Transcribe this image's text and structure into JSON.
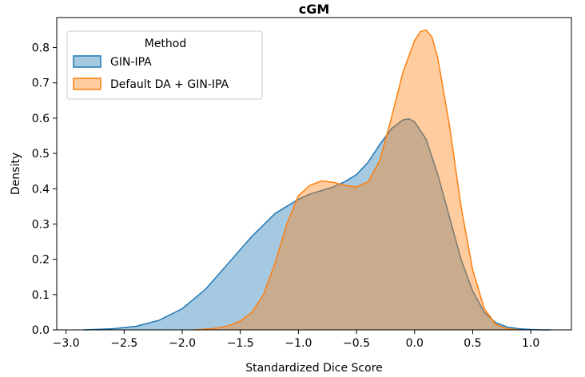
{
  "chart_data": {
    "type": "area",
    "title": "cGM",
    "xlabel": "Standardized Dice Score",
    "ylabel": "Density",
    "xlim": [
      -3.08,
      1.35
    ],
    "ylim": [
      0.0,
      0.885
    ],
    "xticks": [
      -3.0,
      -2.5,
      -2.0,
      -1.5,
      -1.0,
      -0.5,
      0.0,
      0.5,
      1.0
    ],
    "xtick_labels": [
      "−3.0",
      "−2.5",
      "−2.0",
      "−1.5",
      "−1.0",
      "−0.5",
      "0.0",
      "0.5",
      "1.0"
    ],
    "yticks": [
      0.0,
      0.1,
      0.2,
      0.3,
      0.4,
      0.5,
      0.6,
      0.7,
      0.8
    ],
    "ytick_labels": [
      "0.0",
      "0.1",
      "0.2",
      "0.3",
      "0.4",
      "0.5",
      "0.6",
      "0.7",
      "0.8"
    ],
    "grid": false,
    "legend": {
      "title": "Method",
      "placement": "top-left"
    },
    "series": [
      {
        "name": "GIN-IPA",
        "fill": "#1f77b4",
        "line": "#1f77b4",
        "x": [
          -2.85,
          -2.6,
          -2.4,
          -2.2,
          -2.0,
          -1.8,
          -1.6,
          -1.4,
          -1.2,
          -1.0,
          -0.9,
          -0.8,
          -0.7,
          -0.6,
          -0.5,
          -0.4,
          -0.3,
          -0.2,
          -0.1,
          -0.05,
          0.0,
          0.1,
          0.2,
          0.3,
          0.4,
          0.5,
          0.6,
          0.7,
          0.8,
          0.9,
          1.0,
          1.1,
          1.17
        ],
        "y": [
          0.0,
          0.003,
          0.01,
          0.027,
          0.06,
          0.115,
          0.19,
          0.265,
          0.33,
          0.37,
          0.385,
          0.395,
          0.405,
          0.42,
          0.44,
          0.475,
          0.525,
          0.57,
          0.595,
          0.598,
          0.59,
          0.54,
          0.44,
          0.32,
          0.2,
          0.11,
          0.05,
          0.02,
          0.008,
          0.003,
          0.001,
          0.0,
          0.0
        ]
      },
      {
        "name": "Default DA + GIN-IPA",
        "fill": "#ff7f0e",
        "line": "#ff7f0e",
        "x": [
          -1.9,
          -1.8,
          -1.7,
          -1.6,
          -1.5,
          -1.4,
          -1.3,
          -1.2,
          -1.1,
          -1.0,
          -0.9,
          -0.8,
          -0.7,
          -0.6,
          -0.5,
          -0.4,
          -0.3,
          -0.2,
          -0.1,
          0.0,
          0.05,
          0.1,
          0.15,
          0.2,
          0.3,
          0.4,
          0.5,
          0.6,
          0.7,
          0.8,
          0.9
        ],
        "y": [
          0.0,
          0.002,
          0.005,
          0.012,
          0.025,
          0.05,
          0.1,
          0.19,
          0.3,
          0.38,
          0.41,
          0.422,
          0.418,
          0.41,
          0.405,
          0.42,
          0.48,
          0.6,
          0.73,
          0.82,
          0.845,
          0.85,
          0.83,
          0.77,
          0.58,
          0.35,
          0.17,
          0.06,
          0.015,
          0.003,
          0.0
        ]
      }
    ]
  }
}
